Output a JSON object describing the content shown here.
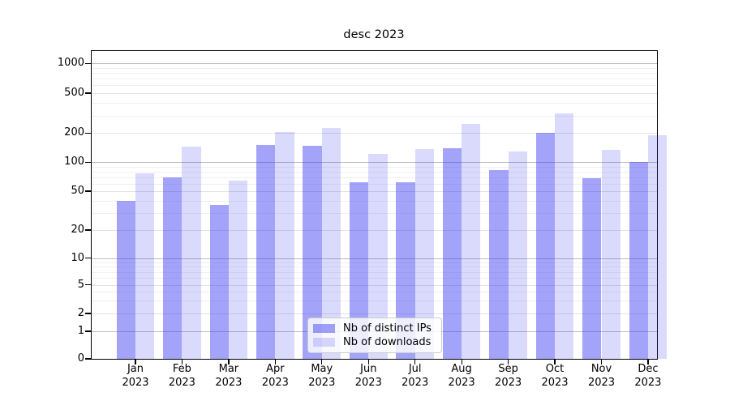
{
  "chart_data": {
    "type": "bar",
    "title": "desc 2023",
    "yscale": "symlog",
    "grid": "both (major and log-minor horizontal gridlines)",
    "legend_position": "lower center",
    "ylim": [
      0,
      1360
    ],
    "y_ticks": [
      0,
      1,
      2,
      5,
      10,
      20,
      50,
      100,
      200,
      500,
      1000
    ],
    "y_minor_gridlines": [
      3,
      4,
      6,
      7,
      8,
      9,
      30,
      40,
      60,
      70,
      80,
      90,
      300,
      400,
      600,
      700,
      800,
      900
    ],
    "categories": [
      "Jan",
      "Feb",
      "Mar",
      "Apr",
      "May",
      "Jun",
      "Jul",
      "Aug",
      "Sep",
      "Oct",
      "Nov",
      "Dec"
    ],
    "x_year_line": "2023",
    "series": [
      {
        "name": "Nb of distinct IPs",
        "color": "rgba(50,50,245,0.45)",
        "values": [
          40,
          70,
          36,
          152,
          147,
          62,
          62,
          140,
          83,
          200,
          68,
          100
        ]
      },
      {
        "name": "Nb of downloads",
        "color": "rgba(50,50,245,0.18)",
        "values": [
          77,
          144,
          65,
          204,
          224,
          122,
          136,
          248,
          129,
          317,
          134,
          189
        ]
      }
    ]
  }
}
